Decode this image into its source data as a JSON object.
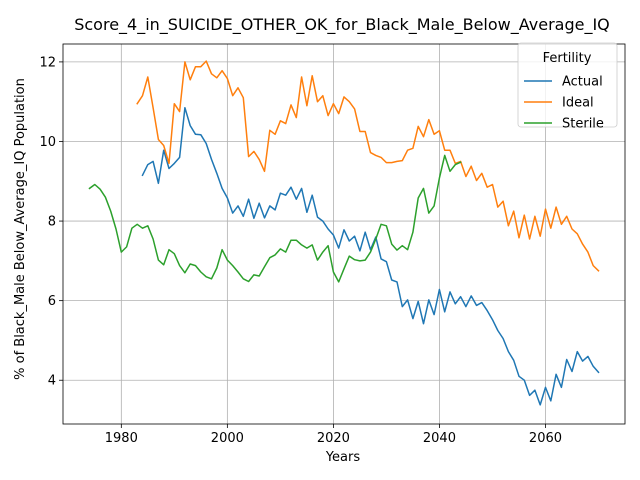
{
  "chart_data": {
    "type": "line",
    "title": "Score_4_in_SUICIDE_OTHER_OK_for_Black_Male_Below_Average_IQ",
    "xlabel": "Years",
    "ylabel": "% of Black_Male Below_Average_IQ Population",
    "xlim": [
      1969,
      2075
    ],
    "ylim": [
      2.9,
      12.45
    ],
    "xticks": [
      1980,
      2000,
      2020,
      2040,
      2060
    ],
    "yticks": [
      4,
      6,
      8,
      10,
      12
    ],
    "grid": true,
    "legend": {
      "title": "Fertility",
      "placement": "top-right"
    },
    "series": [
      {
        "name": "Actual",
        "color": "#1f77b4",
        "x": [
          1984,
          1985,
          1986,
          1987,
          1988,
          1989,
          1990,
          1991,
          1992,
          1993,
          1994,
          1995,
          1996,
          1997,
          1998,
          1999,
          2000,
          2001,
          2002,
          2003,
          2004,
          2005,
          2006,
          2007,
          2008,
          2009,
          2010,
          2011,
          2012,
          2013,
          2014,
          2015,
          2016,
          2017,
          2018,
          2019,
          2020,
          2021,
          2022,
          2023,
          2024,
          2025,
          2026,
          2027,
          2028,
          2029,
          2030,
          2031,
          2032,
          2033,
          2034,
          2035,
          2036,
          2037,
          2038,
          2039,
          2040,
          2041,
          2042,
          2043,
          2044,
          2045,
          2046,
          2047,
          2048,
          2049,
          2050,
          2051,
          2052,
          2053,
          2054,
          2055,
          2056,
          2057,
          2058,
          2059,
          2060,
          2061,
          2062,
          2063,
          2064,
          2065,
          2066,
          2067,
          2068,
          2069,
          2070
        ],
        "values": [
          9.15,
          9.42,
          9.5,
          8.95,
          9.78,
          9.32,
          9.45,
          9.6,
          10.85,
          10.4,
          10.18,
          10.17,
          9.95,
          9.55,
          9.2,
          8.82,
          8.58,
          8.2,
          8.38,
          8.12,
          8.55,
          8.07,
          8.45,
          8.08,
          8.38,
          8.28,
          8.7,
          8.65,
          8.85,
          8.55,
          8.82,
          8.22,
          8.65,
          8.1,
          8.0,
          7.8,
          7.65,
          7.32,
          7.78,
          7.5,
          7.62,
          7.25,
          7.72,
          7.28,
          7.6,
          7.05,
          6.98,
          6.52,
          6.47,
          5.85,
          6.02,
          5.55,
          5.98,
          5.42,
          6.02,
          5.65,
          6.28,
          5.72,
          6.22,
          5.92,
          6.1,
          5.85,
          6.12,
          5.88,
          5.95,
          5.75,
          5.52,
          5.25,
          5.05,
          4.72,
          4.5,
          4.1,
          4.0,
          3.62,
          3.75,
          3.38,
          3.82,
          3.48,
          4.15,
          3.82,
          4.52,
          4.22,
          4.72,
          4.48,
          4.6,
          4.35,
          4.2
        ]
      },
      {
        "name": "Ideal",
        "color": "#ff7f0e",
        "x": [
          1983,
          1984,
          1985,
          1986,
          1987,
          1988,
          1989,
          1990,
          1991,
          1992,
          1993,
          1994,
          1995,
          1996,
          1997,
          1998,
          1999,
          2000,
          2001,
          2002,
          2003,
          2004,
          2005,
          2006,
          2007,
          2008,
          2009,
          2010,
          2011,
          2012,
          2013,
          2014,
          2015,
          2016,
          2017,
          2018,
          2019,
          2020,
          2021,
          2022,
          2023,
          2024,
          2025,
          2026,
          2027,
          2028,
          2029,
          2030,
          2031,
          2032,
          2033,
          2034,
          2035,
          2036,
          2037,
          2038,
          2039,
          2040,
          2041,
          2042,
          2043,
          2044,
          2045,
          2046,
          2047,
          2048,
          2049,
          2050,
          2051,
          2052,
          2053,
          2054,
          2055,
          2056,
          2057,
          2058,
          2059,
          2060,
          2061,
          2062,
          2063,
          2064,
          2065,
          2066,
          2067,
          2068,
          2069,
          2070
        ],
        "values": [
          10.95,
          11.15,
          11.62,
          10.85,
          10.05,
          9.9,
          9.45,
          10.95,
          10.75,
          12.0,
          11.55,
          11.88,
          11.88,
          12.02,
          11.7,
          11.6,
          11.78,
          11.58,
          11.15,
          11.35,
          11.1,
          9.62,
          9.75,
          9.55,
          9.25,
          10.28,
          10.18,
          10.52,
          10.45,
          10.92,
          10.6,
          11.62,
          10.9,
          11.65,
          11.0,
          11.15,
          10.65,
          10.95,
          10.7,
          11.12,
          11.0,
          10.82,
          10.25,
          10.25,
          9.72,
          9.65,
          9.6,
          9.47,
          9.47,
          9.5,
          9.52,
          9.78,
          9.83,
          10.38,
          10.12,
          10.55,
          10.18,
          10.27,
          9.78,
          9.78,
          9.45,
          9.5,
          9.12,
          9.38,
          9.02,
          9.2,
          8.85,
          8.92,
          8.35,
          8.5,
          7.88,
          8.25,
          7.58,
          8.15,
          7.55,
          8.12,
          7.62,
          8.3,
          7.82,
          8.35,
          7.92,
          8.12,
          7.8,
          7.68,
          7.42,
          7.22,
          6.88,
          6.75
        ]
      },
      {
        "name": "Sterile",
        "color": "#2ca02c",
        "x": [
          1974,
          1975,
          1976,
          1977,
          1978,
          1979,
          1980,
          1981,
          1982,
          1983,
          1984,
          1985,
          1986,
          1987,
          1988,
          1989,
          1990,
          1991,
          1992,
          1993,
          1994,
          1995,
          1996,
          1997,
          1998,
          1999,
          2000,
          2001,
          2002,
          2003,
          2004,
          2005,
          2006,
          2007,
          2008,
          2009,
          2010,
          2011,
          2012,
          2013,
          2014,
          2015,
          2016,
          2017,
          2018,
          2019,
          2020,
          2021,
          2022,
          2023,
          2024,
          2025,
          2026,
          2027,
          2028,
          2029,
          2030,
          2031,
          2032,
          2033,
          2034,
          2035,
          2036,
          2037,
          2038,
          2039,
          2040,
          2041,
          2042,
          2043,
          2044
        ],
        "values": [
          8.82,
          8.92,
          8.8,
          8.6,
          8.25,
          7.8,
          7.22,
          7.35,
          7.82,
          7.92,
          7.82,
          7.88,
          7.55,
          7.02,
          6.9,
          7.28,
          7.18,
          6.88,
          6.7,
          6.92,
          6.88,
          6.72,
          6.6,
          6.55,
          6.82,
          7.28,
          7.02,
          6.88,
          6.72,
          6.55,
          6.48,
          6.65,
          6.62,
          6.85,
          7.08,
          7.15,
          7.3,
          7.22,
          7.52,
          7.52,
          7.4,
          7.32,
          7.4,
          7.02,
          7.22,
          7.38,
          6.72,
          6.47,
          6.8,
          7.12,
          7.03,
          7.0,
          7.02,
          7.22,
          7.55,
          7.92,
          7.88,
          7.42,
          7.27,
          7.38,
          7.28,
          7.72,
          8.58,
          8.82,
          8.2,
          8.38,
          9.08,
          9.65,
          9.25,
          9.42,
          9.48
        ]
      }
    ]
  }
}
